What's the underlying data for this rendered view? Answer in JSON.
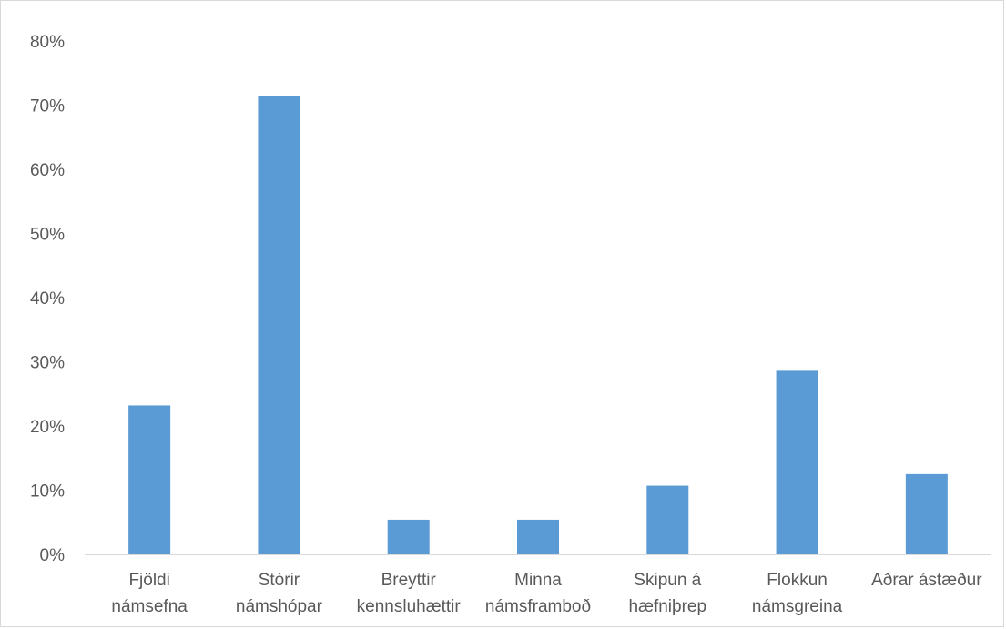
{
  "chart_data": {
    "type": "bar",
    "categories": [
      [
        "Fjöldi",
        "námsefna"
      ],
      [
        "Stórir",
        "námshópar"
      ],
      [
        "Breyttir",
        "kennsluhættir"
      ],
      [
        "Minna",
        "námsframboð"
      ],
      [
        "Skipun á",
        "hæfniþrep"
      ],
      [
        "Flokkun",
        "námsgreina"
      ],
      [
        "Aðrar ástæður"
      ]
    ],
    "values": [
      23.2,
      71.4,
      5.4,
      5.4,
      10.7,
      28.6,
      12.5
    ],
    "y_ticks": [
      "0%",
      "10%",
      "20%",
      "30%",
      "40%",
      "50%",
      "60%",
      "70%",
      "80%"
    ],
    "ylim": [
      0,
      80
    ],
    "grid": false,
    "legend": "none",
    "bar_color": "#5b9bd5",
    "axis_color": "#d9d9d9",
    "text_color": "#595959"
  }
}
